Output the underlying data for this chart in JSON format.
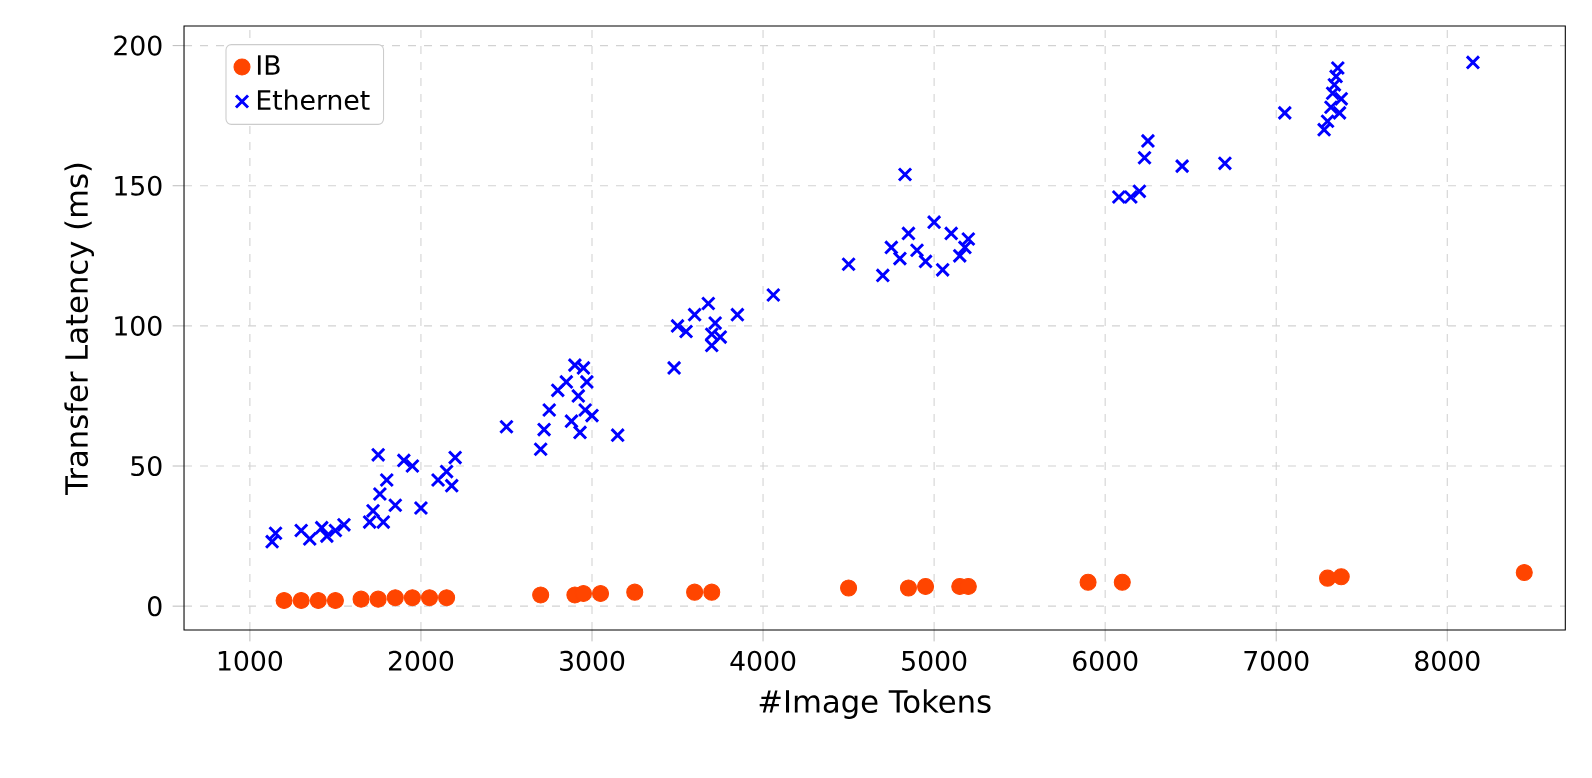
{
  "chart_data": {
    "type": "scatter",
    "xlabel": "#Image Tokens",
    "ylabel": "Transfer Latency (ms)",
    "xlim": [
      615,
      8690
    ],
    "ylim": [
      -8.5,
      207
    ],
    "xticks": [
      1000,
      2000,
      3000,
      4000,
      5000,
      6000,
      7000,
      8000
    ],
    "yticks": [
      0,
      50,
      100,
      150,
      200
    ],
    "grid": true,
    "legend": "top left",
    "series": [
      {
        "name": "IB",
        "color": "#ff4500",
        "marker": "circle",
        "x": [
          1200,
          1300,
          1400,
          1500,
          1650,
          1750,
          1850,
          1950,
          2050,
          2150,
          2700,
          2900,
          2950,
          3050,
          3250,
          3600,
          3700,
          4500,
          4850,
          4950,
          5150,
          5200,
          5900,
          6100,
          7300,
          7350,
          7380,
          8450
        ],
        "values": [
          2,
          2,
          2,
          2,
          2.5,
          2.5,
          3,
          3,
          3,
          3,
          4,
          4,
          4.5,
          4.5,
          5,
          5,
          5,
          6.5,
          6.5,
          7,
          7,
          7,
          8.5,
          8.5,
          10,
          null,
          10.5,
          12
        ]
      },
      {
        "name": "Ethernet",
        "color": "#0000ff",
        "marker": "cross",
        "x": [
          1130,
          1150,
          1300,
          1350,
          1420,
          1450,
          1500,
          1550,
          1700,
          1720,
          1750,
          1760,
          1780,
          1800,
          1850,
          1900,
          1950,
          2000,
          2100,
          2150,
          2200,
          2180,
          2500,
          2700,
          2720,
          2750,
          2800,
          2850,
          2880,
          2900,
          2920,
          2930,
          2950,
          2960,
          2970,
          3000,
          3150,
          3480,
          3500,
          3550,
          3600,
          3680,
          3700,
          3700,
          3720,
          3750,
          3850,
          4060,
          4500,
          4700,
          4750,
          4800,
          4830,
          4850,
          4900,
          4950,
          5000,
          5050,
          5100,
          5150,
          5200,
          5180,
          6080,
          6150,
          6200,
          6230,
          6250,
          6450,
          6700,
          7050,
          7280,
          7300,
          7320,
          7330,
          7340,
          7360,
          7370,
          7380,
          7350,
          8150
        ],
        "values": [
          23,
          26,
          27,
          24,
          28,
          25,
          27,
          29,
          30,
          34,
          54,
          40,
          30,
          45,
          36,
          52,
          50,
          35,
          45,
          48,
          53,
          43,
          64,
          56,
          63,
          70,
          77,
          80,
          66,
          86,
          75,
          62,
          85,
          70,
          80,
          68,
          61,
          85,
          100,
          98,
          104,
          108,
          93,
          97,
          101,
          96,
          104,
          111,
          122,
          118,
          128,
          124,
          154,
          133,
          127,
          123,
          137,
          120,
          133,
          125,
          131,
          128,
          146,
          146,
          148,
          160,
          166,
          157,
          158,
          176,
          170,
          173,
          178,
          183,
          186,
          192,
          176,
          181,
          189,
          194
        ]
      }
    ]
  }
}
